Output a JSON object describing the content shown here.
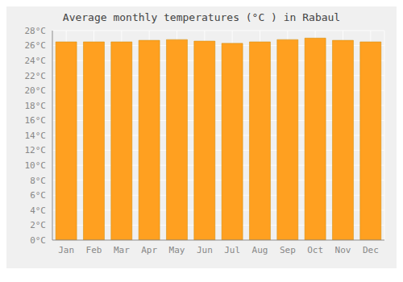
{
  "chart_data": {
    "type": "bar",
    "title": "Average monthly temperatures (°C ) in Rabaul",
    "categories": [
      "Jan",
      "Feb",
      "Mar",
      "Apr",
      "May",
      "Jun",
      "Jul",
      "Aug",
      "Sep",
      "Oct",
      "Nov",
      "Dec"
    ],
    "values": [
      26.5,
      26.5,
      26.5,
      26.7,
      26.8,
      26.6,
      26.3,
      26.5,
      26.8,
      27.0,
      26.7,
      26.5
    ],
    "color": "#FFA020",
    "ylim": [
      0,
      28
    ],
    "yticks": [
      {
        "value": 0,
        "label": "0°C"
      },
      {
        "value": 2,
        "label": "2°C"
      },
      {
        "value": 4,
        "label": "4°C"
      },
      {
        "value": 6,
        "label": "6°C"
      },
      {
        "value": 8,
        "label": "8°C"
      },
      {
        "value": 10,
        "label": "10°C"
      },
      {
        "value": 12,
        "label": "12°C"
      },
      {
        "value": 14,
        "label": "14°C"
      },
      {
        "value": 16,
        "label": "16°C"
      },
      {
        "value": 18,
        "label": "18°C"
      },
      {
        "value": 20,
        "label": "20°C"
      },
      {
        "value": 22,
        "label": "22°C"
      },
      {
        "value": 24,
        "label": "24°C"
      },
      {
        "value": 26,
        "label": "26°C"
      },
      {
        "value": 28,
        "label": "28°C"
      }
    ],
    "grid": true
  }
}
